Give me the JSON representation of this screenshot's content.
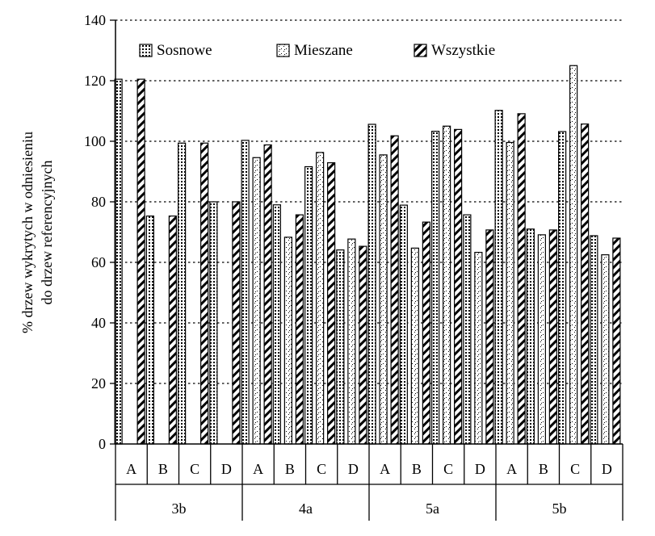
{
  "chart_data": {
    "type": "bar",
    "ylabel_line1": "% drzew wykrytych w odniesieniu",
    "ylabel_line2": "do drzew referencyjnych",
    "ylim": [
      0,
      140
    ],
    "yticks": [
      0,
      20,
      40,
      60,
      80,
      100,
      120,
      140
    ],
    "grid": "horizontal dotted",
    "legend_position": "top",
    "groups": [
      "3b",
      "4a",
      "5a",
      "5b"
    ],
    "subcategories": [
      "A",
      "B",
      "C",
      "D"
    ],
    "categories": [
      "3b A",
      "3b B",
      "3b C",
      "3b D",
      "4a A",
      "4a B",
      "4a C",
      "4a D",
      "5a A",
      "5a B",
      "5a C",
      "5a D",
      "5b A",
      "5b B",
      "5b C",
      "5b D"
    ],
    "series": [
      {
        "name": "Sosnowe",
        "pattern": "dots",
        "values": [
          120.5,
          75.3,
          99.4,
          80.0,
          100.3,
          79.0,
          91.6,
          64.1,
          105.6,
          78.9,
          103.3,
          75.7,
          110.2,
          71.0,
          103.2,
          68.8
        ]
      },
      {
        "name": "Mieszane",
        "pattern": "cross-dots",
        "values": [
          null,
          null,
          null,
          null,
          94.6,
          68.3,
          96.3,
          67.7,
          95.5,
          64.7,
          105.0,
          63.3,
          99.6,
          69.1,
          125.0,
          62.5
        ]
      },
      {
        "name": "Wszystkie",
        "pattern": "diagonal-hatch",
        "values": [
          120.5,
          75.3,
          99.4,
          80.0,
          98.8,
          75.7,
          92.9,
          65.3,
          101.8,
          73.3,
          103.9,
          70.7,
          109.1,
          70.7,
          105.7,
          68.0
        ]
      }
    ]
  }
}
